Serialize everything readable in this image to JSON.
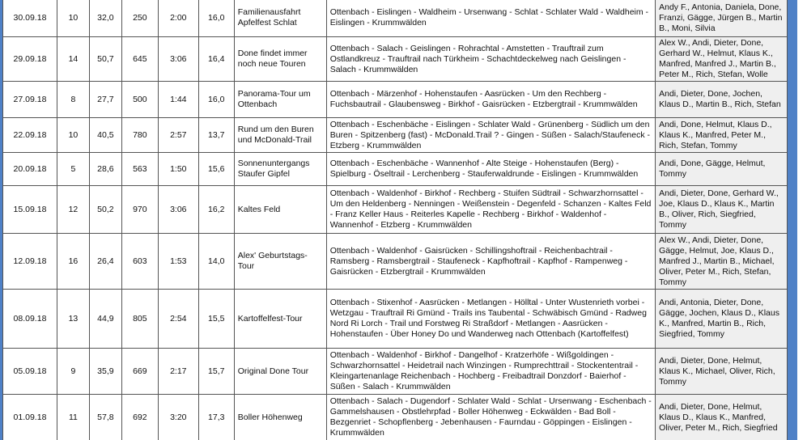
{
  "table": {
    "rows": [
      [
        "30.09.18",
        "10",
        "32,0",
        "250",
        "2:00",
        "16,0",
        "Familienausfahrt Apfelfest Schlat",
        "Ottenbach - Eislingen - Waldheim - Ursenwang - Schlat - Schlater Wald - Waldheim - Eislingen - Krummwälden",
        "Andy F., Antonia, Daniela, Done, Franzi, Gägge, Jürgen B., Martin B., Moni, Silvia"
      ],
      [
        "29.09.18",
        "14",
        "50,7",
        "645",
        "3:06",
        "16,4",
        "Done findet immer noch neue Touren",
        "Ottenbach - Salach - Geislingen - Rohrachtal - Amstetten - Trauftrail zum Ostlandkreuz - Trauftrail nach Türkheim - Schachtdeckelweg nach Geislingen - Salach - Krummwälden",
        "Alex W., Andi, Dieter, Done, Gerhard W., Helmut, Klaus K., Manfred, Manfred J., Martin B., Peter M., Rich, Stefan, Wolle"
      ],
      [
        "27.09.18",
        "8",
        "27,7",
        "500",
        "1:44",
        "16,0",
        "Panorama-Tour um Ottenbach",
        "Ottenbach - Märzenhof - Hohenstaufen - Aasrücken - Um den Rechberg - Fuchsbautrail - Glaubensweg - Birkhof - Gaisrücken - Etzbergtrail - Krummwälden",
        "Andi, Dieter, Done, Jochen, Klaus D., Martin B., Rich, Stefan"
      ],
      [
        "22.09.18",
        "10",
        "40,5",
        "780",
        "2:57",
        "13,7",
        "Rund um den Buren und McDonald-Trail",
        "Ottenbach - Eschenbäche - Eislingen - Schlater Wald - Grünenberg - Südlich um den Buren - Spitzenberg (fast) - McDonald.Trail ? - Gingen - Süßen - Salach/Staufeneck - Etzberg - Krummwälden",
        "Andi, Done, Helmut, Klaus D., Klaus K., Manfred, Peter M., Rich, Stefan, Tommy"
      ],
      [
        "20.09.18",
        "5",
        "28,6",
        "563",
        "1:50",
        "15,6",
        "Sonnenuntergangs Staufer Gipfel",
        "Ottenbach - Eschenbäche - Wannenhof - Alte Steige - Hohenstaufen (Berg) - Spielburg - Öseltrail - Lerchenberg - Stauferwaldrunde - Eislingen - Krummwälden",
        "Andi, Done, Gägge, Helmut, Tommy"
      ],
      [
        "15.09.18",
        "12",
        "50,2",
        "970",
        "3:06",
        "16,2",
        "Kaltes Feld",
        "Ottenbach - Waldenhof - Birkhof - Rechberg - Stuifen Südtrail - Schwarzhornsattel - Um den Heldenberg - Nenningen - Weißenstein - Degenfeld - Schanzen - Kaltes Feld - Franz Keller Haus - Reiterles Kapelle - Rechberg - Birkhof - Waldenhof - Wannenhof - Etzberg - Krummwälden",
        "Andi, Dieter, Done, Gerhard W., Joe, Klaus D., Klaus K., Martin B., Oliver, Rich, Siegfried, Tommy"
      ],
      [
        "12.09.18",
        "16",
        "26,4",
        "603",
        "1:53",
        "14,0",
        "Alex' Geburtstags-Tour",
        "Ottenbach - Waldenhof - Gaisrücken - Schillingshoftrail - Reichenbachtrail - Ramsberg - Ramsbergtrail - Staufeneck - Kapfhoftrail - Kapfhof - Rampenweg - Gaisrücken - Etzbergtrail - Krummwälden",
        "Alex W., Andi, Dieter, Done, Gägge, Helmut, Joe, Klaus D., Manfred J., Martin B., Michael, Oliver, Peter M., Rich, Stefan, Tommy"
      ],
      [
        "08.09.18",
        "13",
        "44,9",
        "805",
        "2:54",
        "15,5",
        "Kartoffelfest-Tour",
        "Ottenbach - Stixenhof - Aasrücken - Metlangen - Hölltal - Unter Wustenrieth vorbei - Wetzgau - Trauftrail Ri Gmünd - Trails ins Taubental - Schwäbisch Gmünd - Radweg Nord Ri Lorch - Trail und Forstweg Ri Straßdorf - Metlangen - Aasrücken - Hohenstaufen - Über Honey Do und Wanderweg nach Ottenbach (Kartoffelfest)",
        "Andi, Antonia, Dieter, Done, Gägge, Jochen, Klaus D., Klaus K., Manfred, Martin B., Rich, Siegfried, Tommy"
      ],
      [
        "05.09.18",
        "9",
        "35,9",
        "669",
        "2:17",
        "15,7",
        "Original Done Tour",
        "Ottenbach - Waldenhof - Birkhof - Dangelhof - Kratzerhöfe - Wißgoldingen - Schwarzhornsattel - Heidetrail nach Winzingen - Rumprechttrail - Stockententrail - Kleingartenanlage Reichenbach - Hochberg - Freibadtrail Donzdorf - Baierhof - Süßen - Salach - Krummwälden",
        "Andi, Dieter, Done, Helmut, Klaus K., Michael, Oliver, Rich, Tommy"
      ],
      [
        "01.09.18",
        "11",
        "57,8",
        "692",
        "3:20",
        "17,3",
        "Boller Höhenweg",
        "Ottenbach - Salach - Dugendorf - Schlater Wald - Schlat - Ursenwang - Eschenbach - Gammelshausen - Obstlehrpfad - Boller Höhenweg - Eckwälden - Bad Boll - Bezgenriet - Schopflenberg - Jebenhausen - Faurndau - Göppingen - Eislingen - Krummwälden",
        "Andi, Dieter, Done, Helmut, Klaus D., Klaus K., Manfred, Oliver, Peter M., Rich, Siegfried"
      ]
    ]
  }
}
